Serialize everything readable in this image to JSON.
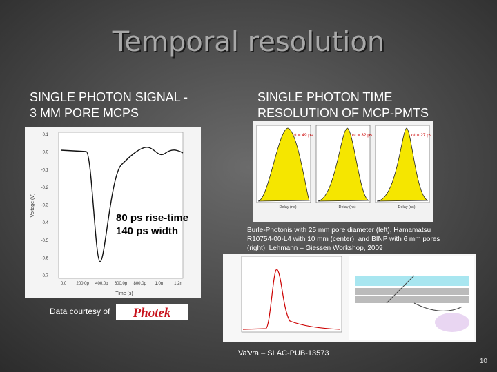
{
  "slide": {
    "title": "Temporal resolution",
    "left": {
      "heading": [
        "SINGLE PHOTON SIGNAL -",
        "3 MM PORE MCPS"
      ],
      "plot": {
        "y_label": "Voltage (V)",
        "x_label": "Time (s)",
        "yticks": [
          "0.1",
          "0.0",
          "-0.1",
          "-0.2",
          "-0.3",
          "-0.4",
          "-0.5",
          "-0.6",
          "-0.7"
        ],
        "xticks": [
          "0.0",
          "200.0p",
          "400.0p",
          "600.0p",
          "800.0p",
          "1.0n",
          "1.2n"
        ]
      },
      "annotation": [
        "80 ps rise-time",
        "140 ps width"
      ],
      "credit": "Data courtesy of",
      "logo": "Photek"
    },
    "right": {
      "heading": [
        "SINGLE PHOTON TIME",
        "RESOLUTION OF MCP-PMTS"
      ],
      "histograms": {
        "sigmas": [
          "σt = 49 ps",
          "σt = 32 ps",
          "σt = 27 ps"
        ],
        "x_label": "Delay (ns)"
      },
      "caption": [
        "Burle-Photonis with 25 mm pore diameter (left), Hamamatsu",
        "R10754-00-L4 with 10 mm (center), and BINP with 6 mm pores",
        "(right):          Lehmann – Giessen Workshop, 2009"
      ],
      "reference": "Va'vra – SLAC-PUB-13573"
    },
    "page_number": "10"
  }
}
